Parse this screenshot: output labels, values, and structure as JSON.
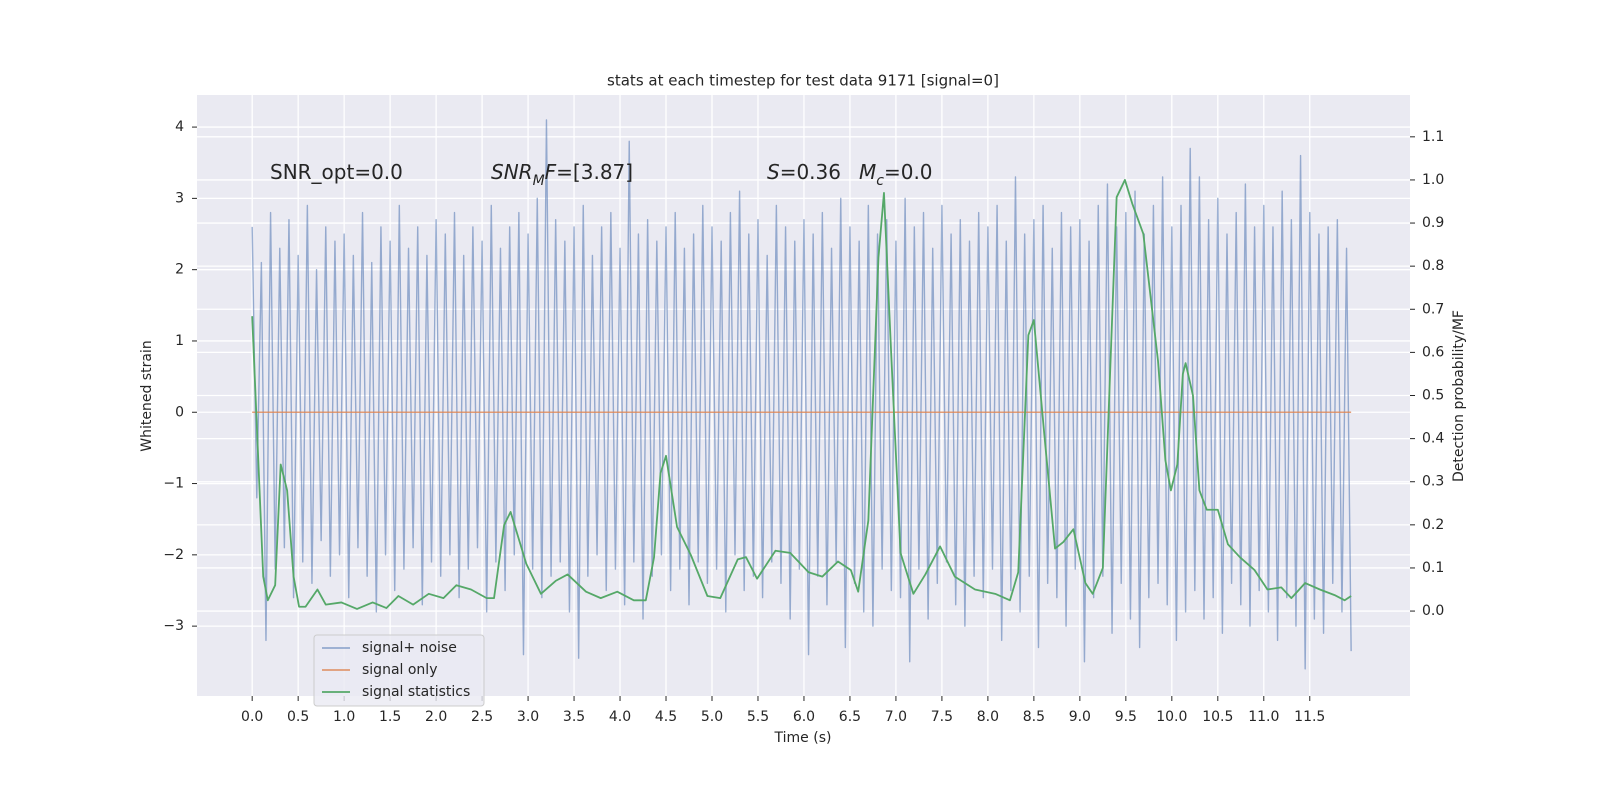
{
  "chart_data": {
    "type": "line",
    "title": "stats at each timestep for test data 9171 [signal=0]",
    "xlabel": "Time (s)",
    "ylabel": "Whitened strain",
    "y2label": "Detection probability/MF",
    "xlim": [
      -0.6,
      12.59
    ],
    "ylim": [
      -3.98,
      4.45
    ],
    "y2lim": [
      -0.197,
      1.197
    ],
    "grid": true,
    "legend_position": "lower left",
    "xticks": [
      {
        "value": 0,
        "label": "0.0"
      },
      0.5,
      {
        "value": 1,
        "label": "1.0"
      },
      1.5,
      {
        "value": 2,
        "label": "2.0"
      },
      2.5,
      {
        "value": 3,
        "label": "3.0"
      },
      3.5,
      {
        "value": 4,
        "label": "4.0"
      },
      4.5,
      {
        "value": 5,
        "label": "5.0"
      },
      5.5,
      {
        "value": 6,
        "label": "6.0"
      },
      6.5,
      {
        "value": 7,
        "label": "7.0"
      },
      7.5,
      {
        "value": 8,
        "label": "8.0"
      },
      8.5,
      {
        "value": 9,
        "label": "9.0"
      },
      9.5,
      {
        "value": 10,
        "label": "10.0"
      },
      10.5,
      {
        "value": 11,
        "label": "11.0"
      },
      11.5
    ],
    "yticks": [
      {
        "value": -3,
        "label": "−3"
      },
      {
        "value": -2,
        "label": "−2"
      },
      {
        "value": -1,
        "label": "−1"
      },
      0,
      1,
      2,
      3,
      4
    ],
    "y2ticks": [
      {
        "value": 0,
        "label": "0.0"
      },
      0.1,
      0.2,
      0.3,
      0.4,
      0.5,
      0.6,
      0.7,
      0.8,
      0.9,
      {
        "value": 1,
        "label": "1.0"
      },
      1.1
    ],
    "annotations": [
      [
        {
          "text": "SNR_opt=0.0"
        }
      ],
      [
        {
          "text": "SNR",
          "italic": true
        },
        {
          "text": "M",
          "italic": true,
          "sub": true
        },
        {
          "text": "F",
          "italic": true
        },
        {
          "text": "=[3.87]"
        }
      ],
      [
        {
          "text": "S",
          "italic": true
        },
        {
          "text": "=0.36"
        }
      ],
      [
        {
          "text": "M",
          "italic": true
        },
        {
          "text": "c",
          "italic": true,
          "sub": true
        },
        {
          "text": "=0.0"
        }
      ]
    ],
    "series": [
      {
        "name": "signal+ noise",
        "color": "#4c72b0",
        "opacity": 0.55,
        "x": [
          0,
          0.05,
          0.1,
          0.15,
          0.2,
          0.25,
          0.3,
          0.35,
          0.4,
          0.45,
          0.5,
          0.55,
          0.6,
          0.65,
          0.7,
          0.75,
          0.8,
          0.85,
          0.9,
          0.95,
          1,
          1.05,
          1.1,
          1.15,
          1.2,
          1.25,
          1.3,
          1.35,
          1.4,
          1.45,
          1.5,
          1.55,
          1.6,
          1.65,
          1.7,
          1.75,
          1.8,
          1.85,
          1.9,
          1.95,
          2,
          2.05,
          2.1,
          2.15,
          2.2,
          2.25,
          2.3,
          2.35,
          2.4,
          2.45,
          2.5,
          2.55,
          2.6,
          2.65,
          2.7,
          2.75,
          2.8,
          2.85,
          2.9,
          2.95,
          3,
          3.05,
          3.1,
          3.15,
          3.2,
          3.25,
          3.3,
          3.35,
          3.4,
          3.45,
          3.5,
          3.55,
          3.6,
          3.65,
          3.7,
          3.75,
          3.8,
          3.85,
          3.9,
          3.95,
          4,
          4.05,
          4.1,
          4.15,
          4.2,
          4.25,
          4.3,
          4.35,
          4.4,
          4.45,
          4.5,
          4.55,
          4.6,
          4.65,
          4.7,
          4.75,
          4.8,
          4.85,
          4.9,
          4.95,
          5,
          5.05,
          5.1,
          5.15,
          5.2,
          5.25,
          5.3,
          5.35,
          5.4,
          5.45,
          5.5,
          5.55,
          5.6,
          5.65,
          5.7,
          5.75,
          5.8,
          5.85,
          5.9,
          5.95,
          6,
          6.05,
          6.1,
          6.15,
          6.2,
          6.25,
          6.3,
          6.35,
          6.4,
          6.45,
          6.5,
          6.55,
          6.6,
          6.65,
          6.7,
          6.75,
          6.8,
          6.85,
          6.9,
          6.95,
          7,
          7.05,
          7.1,
          7.15,
          7.2,
          7.25,
          7.3,
          7.35,
          7.4,
          7.45,
          7.5,
          7.55,
          7.6,
          7.65,
          7.7,
          7.75,
          7.8,
          7.85,
          7.9,
          7.95,
          8,
          8.05,
          8.1,
          8.15,
          8.2,
          8.25,
          8.3,
          8.35,
          8.4,
          8.45,
          8.5,
          8.55,
          8.6,
          8.65,
          8.7,
          8.75,
          8.8,
          8.85,
          8.9,
          8.95,
          9,
          9.05,
          9.1,
          9.15,
          9.2,
          9.25,
          9.3,
          9.35,
          9.4,
          9.45,
          9.5,
          9.55,
          9.6,
          9.65,
          9.7,
          9.75,
          9.8,
          9.85,
          9.9,
          9.95,
          10,
          10.05,
          10.1,
          10.15,
          10.2,
          10.25,
          10.3,
          10.35,
          10.4,
          10.45,
          10.5,
          10.55,
          10.6,
          10.65,
          10.7,
          10.75,
          10.8,
          10.85,
          10.9,
          10.95,
          11,
          11.05,
          11.1,
          11.15,
          11.2,
          11.25,
          11.3,
          11.35,
          11.4,
          11.45,
          11.5,
          11.55,
          11.6,
          11.65,
          11.7,
          11.75,
          11.8,
          11.85,
          11.9,
          11.95
        ],
        "values": [
          2.6,
          -1.2,
          2.1,
          -3.2,
          2.8,
          -2.2,
          2.3,
          -1.9,
          2.7,
          -2.6,
          2.2,
          -2.1,
          2.9,
          -2.4,
          2.0,
          -1.8,
          2.6,
          -2.3,
          2.4,
          -2.0,
          2.5,
          -2.6,
          2.2,
          -1.9,
          2.8,
          -2.3,
          2.1,
          -2.8,
          2.6,
          -2.0,
          2.4,
          -2.5,
          2.9,
          -2.2,
          2.3,
          -1.9,
          2.6,
          -2.7,
          2.2,
          -2.1,
          2.7,
          -2.3,
          2.5,
          -2.0,
          2.8,
          -2.6,
          2.2,
          -2.2,
          2.6,
          -1.9,
          2.4,
          -2.8,
          2.9,
          -2.1,
          2.3,
          -2.5,
          2.6,
          -2.0,
          2.8,
          -3.4,
          2.5,
          -2.2,
          3.0,
          -2.6,
          4.1,
          -2.3,
          2.7,
          -2.1,
          2.4,
          -2.8,
          2.6,
          -3.45,
          2.9,
          -2.3,
          2.2,
          -2.0,
          2.6,
          -2.5,
          2.8,
          -2.2,
          2.3,
          -2.7,
          3.8,
          -2.1,
          2.5,
          -2.9,
          2.7,
          -2.3,
          2.4,
          -2.0,
          2.6,
          -2.5,
          2.8,
          -2.2,
          2.3,
          -2.7,
          2.5,
          -2.1,
          2.9,
          -2.4,
          2.6,
          -2.2,
          2.4,
          -2.8,
          2.8,
          -2.0,
          3.1,
          -2.5,
          2.5,
          -2.3,
          2.7,
          -2.6,
          2.2,
          -2.1,
          2.9,
          -2.4,
          2.6,
          -2.9,
          2.4,
          -2.2,
          2.7,
          -3.4,
          2.5,
          -2.3,
          2.8,
          -2.7,
          2.3,
          -2.1,
          3.0,
          -3.3,
          2.6,
          -2.4,
          2.4,
          -2.8,
          2.9,
          -3.0,
          2.5,
          -2.2,
          2.7,
          -2.5,
          2.4,
          -2.6,
          3.0,
          -3.5,
          2.6,
          -2.2,
          2.8,
          -2.9,
          2.3,
          -2.4,
          2.9,
          -2.1,
          2.5,
          -2.7,
          2.7,
          -3.0,
          2.4,
          -2.3,
          2.8,
          -2.6,
          2.6,
          -2.2,
          2.9,
          -3.2,
          2.4,
          -2.5,
          3.3,
          -2.8,
          2.5,
          -2.3,
          2.7,
          -3.3,
          2.9,
          -2.4,
          2.3,
          -2.6,
          2.8,
          -3.0,
          2.6,
          -2.2,
          2.7,
          -3.5,
          2.4,
          -2.6,
          2.9,
          -2.3,
          3.2,
          -3.1,
          2.6,
          -2.4,
          2.8,
          -2.9,
          3.1,
          -3.3,
          2.5,
          -2.6,
          2.9,
          -2.4,
          3.3,
          -2.7,
          2.6,
          -3.2,
          2.9,
          -2.8,
          3.7,
          -2.5,
          3.3,
          -2.9,
          2.7,
          -2.6,
          3.0,
          -3.1,
          2.5,
          -2.4,
          2.8,
          -2.7,
          3.2,
          -3.0,
          2.6,
          -2.5,
          2.9,
          -2.8,
          2.6,
          -3.2,
          3.1,
          -2.6,
          2.7,
          -3.0,
          3.6,
          -3.6,
          2.8,
          -2.9,
          2.5,
          -3.1,
          2.6,
          -2.4,
          2.7,
          -2.8,
          2.3,
          -3.35
        ]
      },
      {
        "name": "signal only",
        "color": "#dd8452",
        "opacity": 0.8,
        "x": [
          0,
          11.95
        ],
        "values": [
          0,
          0
        ]
      },
      {
        "name": "signal statistics",
        "color": "#55a868",
        "opacity": 1,
        "axis": "y2",
        "x": [
          0,
          0.12,
          0.17,
          0.25,
          0.31,
          0.38,
          0.45,
          0.51,
          0.58,
          0.71,
          0.8,
          0.97,
          1.14,
          1.31,
          1.46,
          1.59,
          1.75,
          1.92,
          2.08,
          2.22,
          2.38,
          2.55,
          2.63,
          2.74,
          2.81,
          2.98,
          3.14,
          3.3,
          3.43,
          3.63,
          3.79,
          3.97,
          4.15,
          4.28,
          4.37,
          4.44,
          4.5,
          4.62,
          4.77,
          4.95,
          5.09,
          5.28,
          5.37,
          5.49,
          5.69,
          5.85,
          6.05,
          6.2,
          6.37,
          6.51,
          6.59,
          6.7,
          6.81,
          6.87,
          6.95,
          7.05,
          7.19,
          7.32,
          7.48,
          7.64,
          7.86,
          8.08,
          8.24,
          8.33,
          8.44,
          8.5,
          8.62,
          8.73,
          8.82,
          8.93,
          9.06,
          9.14,
          9.25,
          9.4,
          9.49,
          9.57,
          9.69,
          9.85,
          9.93,
          9.99,
          10.06,
          10.12,
          10.15,
          10.23,
          10.3,
          10.38,
          10.5,
          10.61,
          10.74,
          10.9,
          11.04,
          11.19,
          11.3,
          11.45,
          11.61,
          11.77,
          11.88,
          11.95
        ],
        "values": [
          0.684,
          0.08,
          0.025,
          0.06,
          0.34,
          0.28,
          0.08,
          0.01,
          0.01,
          0.05,
          0.015,
          0.02,
          0.005,
          0.02,
          0.007,
          0.035,
          0.015,
          0.04,
          0.03,
          0.06,
          0.05,
          0.03,
          0.03,
          0.2,
          0.23,
          0.11,
          0.04,
          0.07,
          0.085,
          0.045,
          0.03,
          0.045,
          0.025,
          0.025,
          0.125,
          0.32,
          0.36,
          0.195,
          0.13,
          0.035,
          0.03,
          0.12,
          0.125,
          0.075,
          0.14,
          0.135,
          0.09,
          0.08,
          0.115,
          0.095,
          0.045,
          0.21,
          0.82,
          0.97,
          0.59,
          0.135,
          0.04,
          0.085,
          0.15,
          0.08,
          0.05,
          0.04,
          0.025,
          0.09,
          0.64,
          0.675,
          0.395,
          0.145,
          0.16,
          0.19,
          0.065,
          0.04,
          0.1,
          0.96,
          1.0,
          0.945,
          0.875,
          0.58,
          0.35,
          0.28,
          0.34,
          0.55,
          0.575,
          0.5,
          0.28,
          0.235,
          0.235,
          0.155,
          0.125,
          0.095,
          0.05,
          0.055,
          0.03,
          0.065,
          0.05,
          0.037,
          0.025,
          0.035
        ]
      }
    ]
  }
}
